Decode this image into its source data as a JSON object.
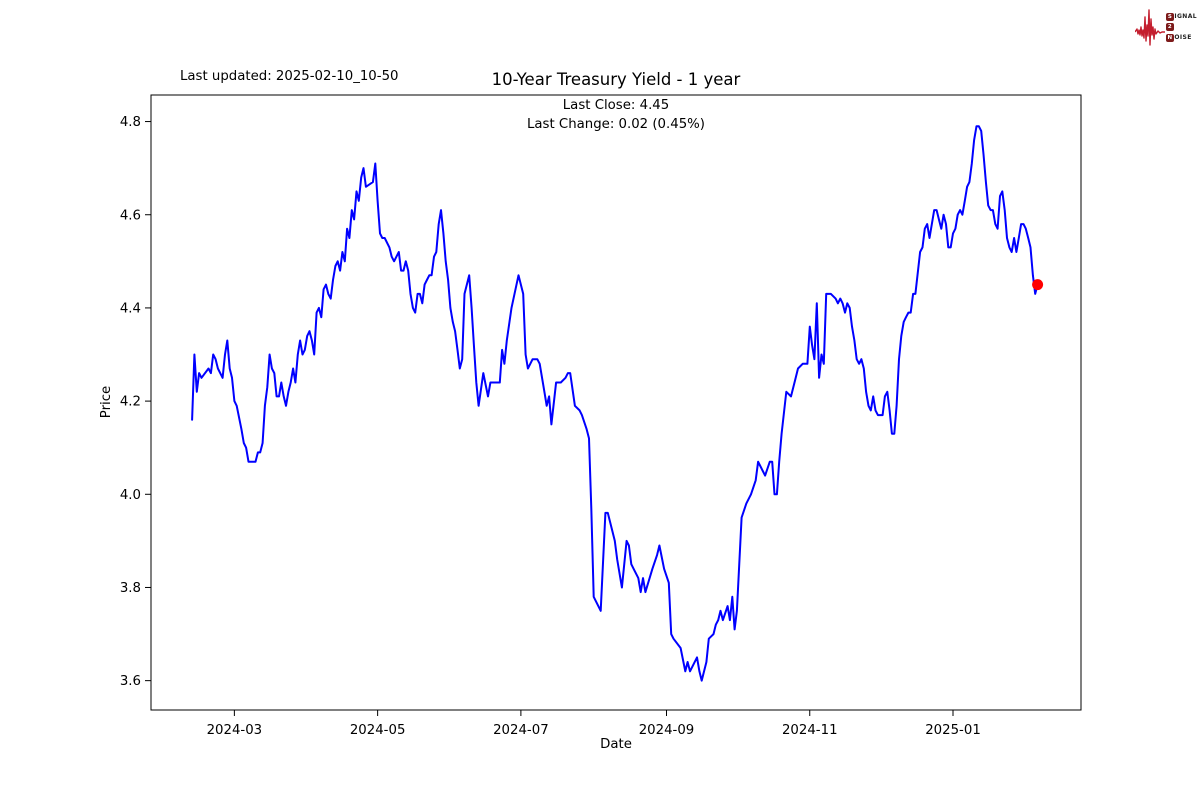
{
  "header": {
    "last_updated": "Last updated: 2025-02-10_10-50",
    "title": "10-Year Treasury Yield - 1 year"
  },
  "annotation": {
    "line1": "Last Close: 4.45",
    "line2": "Last Change: 0.02 (0.45%)"
  },
  "logo": {
    "row1_badge": "S",
    "row1_rest": "IGNAL",
    "row2_badge": "2",
    "row3_badge": "N",
    "row3_rest": "OISE",
    "waveform_color": "#c41e2e",
    "badge_color": "#7d1b1b"
  },
  "chart_data": {
    "type": "line",
    "title": "10-Year Treasury Yield - 1 year",
    "xlabel": "Date",
    "ylabel": "Price",
    "line_color": "#0000ff",
    "marker_color": "#ff0000",
    "last_close": 4.45,
    "last_change": "0.02 (0.45%)",
    "legend": "none",
    "grid": false,
    "x_unit": "days since first data point (first point = 2024-02, axis ticks at month starts)",
    "xlim_days": [
      -17.5,
      378.5
    ],
    "ylim": [
      3.537,
      4.857
    ],
    "yticks": [
      "3.6",
      "3.8",
      "4.0",
      "4.2",
      "4.4",
      "4.6",
      "4.8"
    ],
    "ytick_values": [
      3.6,
      3.8,
      4.0,
      4.2,
      4.4,
      4.6,
      4.8
    ],
    "xticks": [
      {
        "day": 18,
        "label": "2024-03"
      },
      {
        "day": 79,
        "label": "2024-05"
      },
      {
        "day": 140,
        "label": "2024-07"
      },
      {
        "day": 202,
        "label": "2024-09"
      },
      {
        "day": 263,
        "label": "2024-11"
      },
      {
        "day": 324,
        "label": "2025-01"
      }
    ],
    "points": [
      [
        0,
        4.16
      ],
      [
        1,
        4.3
      ],
      [
        2,
        4.22
      ],
      [
        3,
        4.26
      ],
      [
        4,
        4.25
      ],
      [
        7,
        4.27
      ],
      [
        8,
        4.26
      ],
      [
        9,
        4.3
      ],
      [
        10,
        4.29
      ],
      [
        11,
        4.27
      ],
      [
        13,
        4.25
      ],
      [
        14,
        4.3
      ],
      [
        15,
        4.33
      ],
      [
        16,
        4.27
      ],
      [
        17,
        4.25
      ],
      [
        18,
        4.2
      ],
      [
        19,
        4.19
      ],
      [
        21,
        4.14
      ],
      [
        22,
        4.11
      ],
      [
        23,
        4.1
      ],
      [
        24,
        4.07
      ],
      [
        25,
        4.07
      ],
      [
        27,
        4.07
      ],
      [
        28,
        4.09
      ],
      [
        29,
        4.09
      ],
      [
        30,
        4.11
      ],
      [
        31,
        4.19
      ],
      [
        32,
        4.23
      ],
      [
        33,
        4.3
      ],
      [
        34,
        4.27
      ],
      [
        35,
        4.26
      ],
      [
        36,
        4.21
      ],
      [
        37,
        4.21
      ],
      [
        38,
        4.24
      ],
      [
        39,
        4.21
      ],
      [
        40,
        4.19
      ],
      [
        41,
        4.22
      ],
      [
        42,
        4.24
      ],
      [
        43,
        4.27
      ],
      [
        44,
        4.24
      ],
      [
        45,
        4.3
      ],
      [
        46,
        4.33
      ],
      [
        47,
        4.3
      ],
      [
        48,
        4.31
      ],
      [
        49,
        4.34
      ],
      [
        50,
        4.35
      ],
      [
        51,
        4.33
      ],
      [
        52,
        4.3
      ],
      [
        53,
        4.39
      ],
      [
        54,
        4.4
      ],
      [
        55,
        4.38
      ],
      [
        56,
        4.44
      ],
      [
        57,
        4.45
      ],
      [
        58,
        4.43
      ],
      [
        59,
        4.42
      ],
      [
        60,
        4.46
      ],
      [
        61,
        4.49
      ],
      [
        62,
        4.5
      ],
      [
        63,
        4.48
      ],
      [
        64,
        4.52
      ],
      [
        65,
        4.5
      ],
      [
        66,
        4.57
      ],
      [
        67,
        4.55
      ],
      [
        68,
        4.61
      ],
      [
        69,
        4.59
      ],
      [
        70,
        4.65
      ],
      [
        71,
        4.63
      ],
      [
        72,
        4.68
      ],
      [
        73,
        4.7
      ],
      [
        74,
        4.66
      ],
      [
        77,
        4.67
      ],
      [
        78,
        4.71
      ],
      [
        79,
        4.63
      ],
      [
        80,
        4.56
      ],
      [
        81,
        4.55
      ],
      [
        82,
        4.55
      ],
      [
        84,
        4.53
      ],
      [
        85,
        4.51
      ],
      [
        86,
        4.5
      ],
      [
        87,
        4.51
      ],
      [
        88,
        4.52
      ],
      [
        89,
        4.48
      ],
      [
        90,
        4.48
      ],
      [
        91,
        4.5
      ],
      [
        92,
        4.48
      ],
      [
        93,
        4.43
      ],
      [
        94,
        4.4
      ],
      [
        95,
        4.39
      ],
      [
        96,
        4.43
      ],
      [
        97,
        4.43
      ],
      [
        98,
        4.41
      ],
      [
        99,
        4.45
      ],
      [
        100,
        4.46
      ],
      [
        101,
        4.47
      ],
      [
        102,
        4.47
      ],
      [
        103,
        4.51
      ],
      [
        104,
        4.52
      ],
      [
        105,
        4.58
      ],
      [
        106,
        4.61
      ],
      [
        107,
        4.56
      ],
      [
        108,
        4.5
      ],
      [
        109,
        4.46
      ],
      [
        110,
        4.4
      ],
      [
        111,
        4.37
      ],
      [
        112,
        4.35
      ],
      [
        113,
        4.31
      ],
      [
        114,
        4.27
      ],
      [
        115,
        4.29
      ],
      [
        116,
        4.43
      ],
      [
        118,
        4.47
      ],
      [
        119,
        4.4
      ],
      [
        120,
        4.32
      ],
      [
        121,
        4.24
      ],
      [
        122,
        4.19
      ],
      [
        124,
        4.26
      ],
      [
        126,
        4.21
      ],
      [
        127,
        4.24
      ],
      [
        129,
        4.24
      ],
      [
        131,
        4.24
      ],
      [
        132,
        4.31
      ],
      [
        133,
        4.28
      ],
      [
        134,
        4.33
      ],
      [
        136,
        4.4
      ],
      [
        139,
        4.47
      ],
      [
        141,
        4.43
      ],
      [
        142,
        4.3
      ],
      [
        143,
        4.27
      ],
      [
        145,
        4.29
      ],
      [
        147,
        4.29
      ],
      [
        148,
        4.28
      ],
      [
        150,
        4.22
      ],
      [
        151,
        4.19
      ],
      [
        152,
        4.21
      ],
      [
        153,
        4.15
      ],
      [
        155,
        4.24
      ],
      [
        157,
        4.24
      ],
      [
        159,
        4.25
      ],
      [
        160,
        4.26
      ],
      [
        161,
        4.26
      ],
      [
        163,
        4.19
      ],
      [
        165,
        4.18
      ],
      [
        166,
        4.17
      ],
      [
        168,
        4.14
      ],
      [
        169,
        4.12
      ],
      [
        170,
        3.97
      ],
      [
        171,
        3.78
      ],
      [
        172,
        3.77
      ],
      [
        174,
        3.75
      ],
      [
        176,
        3.96
      ],
      [
        177,
        3.96
      ],
      [
        179,
        3.92
      ],
      [
        180,
        3.9
      ],
      [
        181,
        3.86
      ],
      [
        183,
        3.8
      ],
      [
        185,
        3.9
      ],
      [
        186,
        3.89
      ],
      [
        187,
        3.85
      ],
      [
        188,
        3.84
      ],
      [
        190,
        3.82
      ],
      [
        191,
        3.79
      ],
      [
        192,
        3.82
      ],
      [
        193,
        3.79
      ],
      [
        196,
        3.84
      ],
      [
        198,
        3.87
      ],
      [
        199,
        3.89
      ],
      [
        201,
        3.84
      ],
      [
        203,
        3.81
      ],
      [
        204,
        3.7
      ],
      [
        205,
        3.69
      ],
      [
        208,
        3.67
      ],
      [
        210,
        3.62
      ],
      [
        211,
        3.64
      ],
      [
        212,
        3.62
      ],
      [
        215,
        3.65
      ],
      [
        216,
        3.62
      ],
      [
        217,
        3.6
      ],
      [
        219,
        3.64
      ],
      [
        220,
        3.69
      ],
      [
        222,
        3.7
      ],
      [
        223,
        3.72
      ],
      [
        224,
        3.73
      ],
      [
        225,
        3.75
      ],
      [
        226,
        3.73
      ],
      [
        228,
        3.76
      ],
      [
        229,
        3.73
      ],
      [
        230,
        3.78
      ],
      [
        231,
        3.71
      ],
      [
        232,
        3.75
      ],
      [
        234,
        3.95
      ],
      [
        236,
        3.98
      ],
      [
        238,
        4.0
      ],
      [
        240,
        4.03
      ],
      [
        241,
        4.07
      ],
      [
        243,
        4.05
      ],
      [
        244,
        4.04
      ],
      [
        246,
        4.07
      ],
      [
        247,
        4.07
      ],
      [
        248,
        4.0
      ],
      [
        249,
        4.0
      ],
      [
        250,
        4.07
      ],
      [
        251,
        4.13
      ],
      [
        253,
        4.22
      ],
      [
        255,
        4.21
      ],
      [
        257,
        4.25
      ],
      [
        258,
        4.27
      ],
      [
        260,
        4.28
      ],
      [
        262,
        4.28
      ],
      [
        263,
        4.36
      ],
      [
        264,
        4.32
      ],
      [
        265,
        4.29
      ],
      [
        266,
        4.41
      ],
      [
        267,
        4.25
      ],
      [
        268,
        4.3
      ],
      [
        269,
        4.28
      ],
      [
        270,
        4.43
      ],
      [
        271,
        4.43
      ],
      [
        272,
        4.43
      ],
      [
        274,
        4.42
      ],
      [
        275,
        4.41
      ],
      [
        276,
        4.42
      ],
      [
        277,
        4.41
      ],
      [
        278,
        4.39
      ],
      [
        279,
        4.41
      ],
      [
        280,
        4.4
      ],
      [
        281,
        4.36
      ],
      [
        282,
        4.33
      ],
      [
        283,
        4.29
      ],
      [
        284,
        4.28
      ],
      [
        285,
        4.29
      ],
      [
        286,
        4.27
      ],
      [
        287,
        4.22
      ],
      [
        288,
        4.19
      ],
      [
        289,
        4.18
      ],
      [
        290,
        4.21
      ],
      [
        291,
        4.18
      ],
      [
        292,
        4.17
      ],
      [
        293,
        4.17
      ],
      [
        294,
        4.17
      ],
      [
        295,
        4.21
      ],
      [
        296,
        4.22
      ],
      [
        297,
        4.18
      ],
      [
        298,
        4.13
      ],
      [
        299,
        4.13
      ],
      [
        300,
        4.19
      ],
      [
        301,
        4.29
      ],
      [
        302,
        4.34
      ],
      [
        303,
        4.37
      ],
      [
        304,
        4.38
      ],
      [
        305,
        4.39
      ],
      [
        306,
        4.39
      ],
      [
        307,
        4.43
      ],
      [
        308,
        4.43
      ],
      [
        310,
        4.52
      ],
      [
        311,
        4.53
      ],
      [
        312,
        4.57
      ],
      [
        313,
        4.58
      ],
      [
        314,
        4.55
      ],
      [
        316,
        4.61
      ],
      [
        317,
        4.61
      ],
      [
        318,
        4.59
      ],
      [
        319,
        4.57
      ],
      [
        320,
        4.6
      ],
      [
        321,
        4.58
      ],
      [
        322,
        4.53
      ],
      [
        323,
        4.53
      ],
      [
        324,
        4.56
      ],
      [
        325,
        4.57
      ],
      [
        326,
        4.6
      ],
      [
        327,
        4.61
      ],
      [
        328,
        4.6
      ],
      [
        329,
        4.63
      ],
      [
        330,
        4.66
      ],
      [
        331,
        4.67
      ],
      [
        332,
        4.71
      ],
      [
        333,
        4.76
      ],
      [
        334,
        4.79
      ],
      [
        335,
        4.79
      ],
      [
        336,
        4.78
      ],
      [
        337,
        4.73
      ],
      [
        338,
        4.67
      ],
      [
        339,
        4.62
      ],
      [
        340,
        4.61
      ],
      [
        341,
        4.61
      ],
      [
        342,
        4.58
      ],
      [
        343,
        4.57
      ],
      [
        344,
        4.64
      ],
      [
        345,
        4.65
      ],
      [
        346,
        4.61
      ],
      [
        347,
        4.55
      ],
      [
        348,
        4.53
      ],
      [
        349,
        4.52
      ],
      [
        350,
        4.55
      ],
      [
        351,
        4.52
      ],
      [
        352,
        4.55
      ],
      [
        353,
        4.58
      ],
      [
        354,
        4.58
      ],
      [
        355,
        4.57
      ],
      [
        356,
        4.55
      ],
      [
        357,
        4.53
      ],
      [
        358,
        4.47
      ],
      [
        359,
        4.43
      ],
      [
        360,
        4.45
      ]
    ]
  }
}
